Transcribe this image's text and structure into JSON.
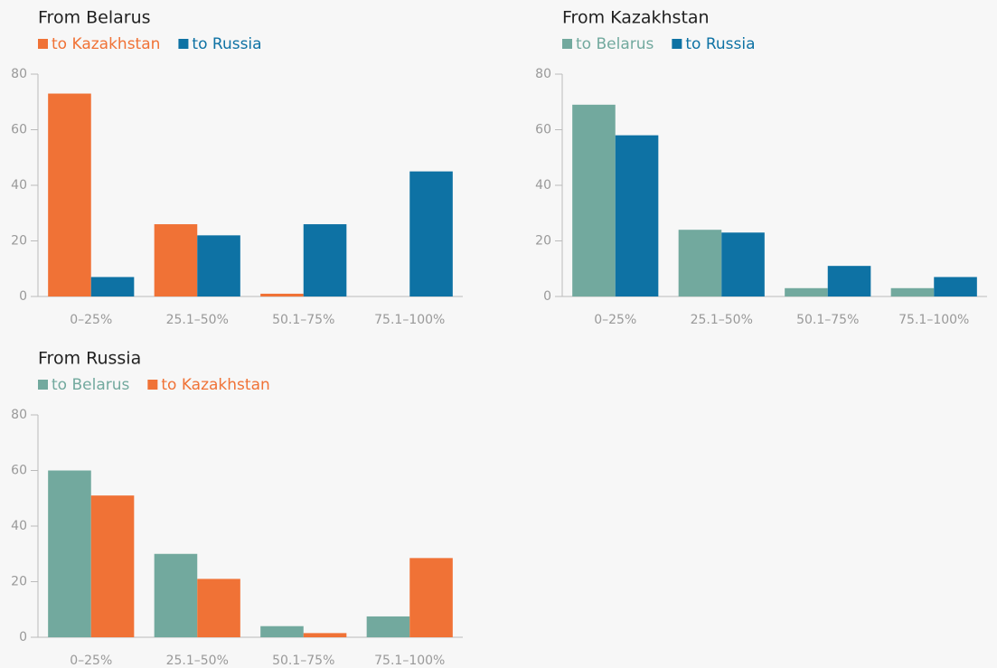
{
  "chart_data": [
    {
      "type": "bar",
      "title": "From Belarus",
      "categories": [
        "0–25%",
        "25.1–50%",
        "50.1–75%",
        "75.1–100%"
      ],
      "series": [
        {
          "name": "to Kazakhstan",
          "color": "#f07236",
          "values": [
            73,
            26,
            1,
            0
          ]
        },
        {
          "name": "to Russia",
          "color": "#0e72a4",
          "values": [
            7,
            22,
            26,
            45
          ]
        }
      ],
      "ylim": [
        0,
        80
      ],
      "yticks": [
        0,
        20,
        40,
        60,
        80
      ]
    },
    {
      "type": "bar",
      "title": "From Kazakhstan",
      "categories": [
        "0–25%",
        "25.1–50%",
        "50.1–75%",
        "75.1–100%"
      ],
      "series": [
        {
          "name": "to Belarus",
          "color": "#72a99e",
          "values": [
            69,
            24,
            3,
            3
          ]
        },
        {
          "name": "to Russia",
          "color": "#0e72a4",
          "values": [
            58,
            23,
            11,
            7
          ]
        }
      ],
      "ylim": [
        0,
        80
      ],
      "yticks": [
        0,
        20,
        40,
        60,
        80
      ]
    },
    {
      "type": "bar",
      "title": "From Russia",
      "categories": [
        "0–25%",
        "25.1–50%",
        "50.1–75%",
        "75.1–100%"
      ],
      "series": [
        {
          "name": "to Belarus",
          "color": "#72a99e",
          "values": [
            60,
            30,
            4,
            7.5
          ]
        },
        {
          "name": "to Kazakhstan",
          "color": "#f07236",
          "values": [
            51,
            21,
            1.5,
            28.5
          ]
        }
      ],
      "ylim": [
        0,
        80
      ],
      "yticks": [
        0,
        20,
        40,
        60,
        80
      ]
    }
  ]
}
